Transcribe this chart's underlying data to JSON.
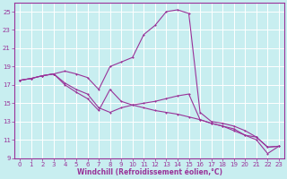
{
  "background_color": "#c8eef0",
  "grid_color": "#ffffff",
  "line_color": "#993399",
  "xlabel": "Windchill (Refroidissement éolien,°C)",
  "xlim": [
    -0.5,
    23.5
  ],
  "ylim": [
    9,
    26
  ],
  "yticks": [
    9,
    11,
    13,
    15,
    17,
    19,
    21,
    23,
    25
  ],
  "xticks": [
    0,
    1,
    2,
    3,
    4,
    5,
    6,
    7,
    8,
    9,
    10,
    11,
    12,
    13,
    14,
    15,
    16,
    17,
    18,
    19,
    20,
    21,
    22,
    23
  ],
  "line1_x": [
    0,
    1,
    2,
    3,
    4,
    5,
    6,
    7,
    8,
    9,
    10,
    11,
    12,
    13,
    14,
    15,
    16,
    17,
    18,
    19,
    20,
    21,
    22,
    23
  ],
  "line1_y": [
    17.5,
    17.7,
    18.0,
    18.2,
    18.5,
    18.2,
    17.8,
    16.5,
    19.0,
    19.5,
    20.0,
    22.5,
    23.5,
    25.0,
    25.2,
    24.8,
    14.0,
    13.0,
    12.8,
    12.5,
    12.0,
    11.3,
    10.2,
    10.3
  ],
  "line2_x": [
    0,
    1,
    2,
    3,
    4,
    5,
    6,
    7,
    8,
    9,
    10,
    11,
    12,
    13,
    14,
    15,
    16,
    17,
    18,
    19,
    20,
    21,
    22,
    23
  ],
  "line2_y": [
    17.5,
    17.7,
    18.0,
    18.2,
    17.2,
    16.5,
    16.0,
    14.5,
    14.0,
    14.5,
    14.8,
    15.0,
    15.2,
    15.5,
    15.8,
    16.0,
    13.2,
    12.8,
    12.5,
    12.2,
    11.5,
    11.3,
    10.2,
    10.3
  ],
  "line3_x": [
    0,
    1,
    2,
    3,
    4,
    5,
    6,
    7,
    8,
    9,
    10,
    11,
    12,
    13,
    14,
    15,
    16,
    17,
    18,
    19,
    20,
    21,
    22,
    23
  ],
  "line3_y": [
    17.5,
    17.7,
    18.0,
    18.2,
    17.0,
    16.2,
    15.5,
    14.2,
    16.5,
    15.2,
    14.8,
    14.5,
    14.2,
    14.0,
    13.8,
    13.5,
    13.2,
    12.8,
    12.5,
    12.0,
    11.5,
    11.0,
    9.5,
    10.3
  ],
  "figsize": [
    3.2,
    2.0
  ],
  "dpi": 100,
  "tick_labelsize": 5,
  "xlabel_fontsize": 5.5,
  "linewidth": 0.8,
  "markersize": 2.0
}
